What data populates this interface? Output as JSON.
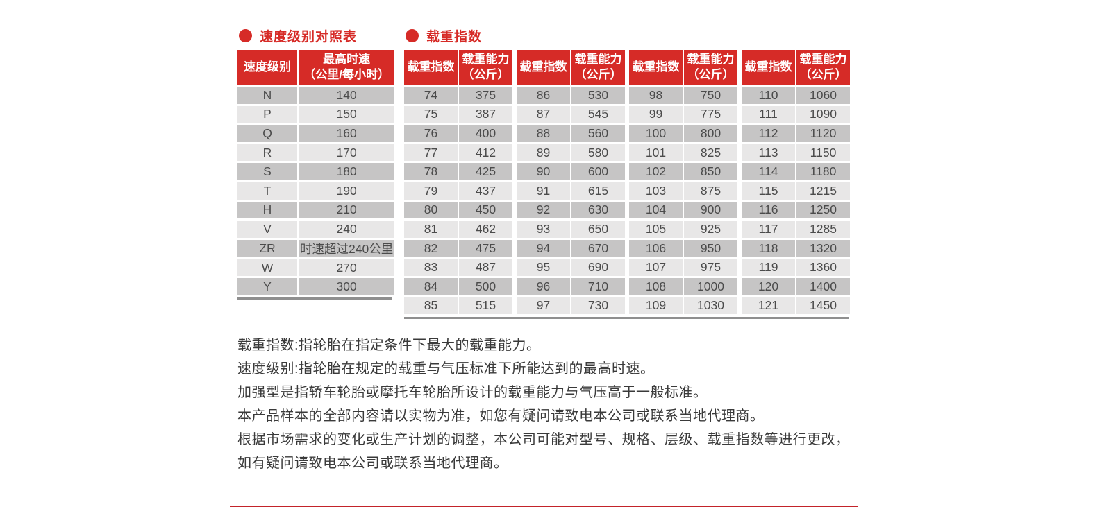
{
  "colors": {
    "accent_red": "#d62b27",
    "row_dark": "#c6c5c5",
    "row_light": "#e8e7e7",
    "cell_text": "#4b4b4b",
    "note_text": "#3a3a3a",
    "underline_gray": "#8f8f8f"
  },
  "speed_table": {
    "title": "速度级别对照表",
    "bullet_icon": "red-circle",
    "col1_header": "速度级别",
    "col2_header_line1": "最高时速",
    "col2_header_line2": "（公里/每小时）",
    "rows": [
      [
        "N",
        "140"
      ],
      [
        "P",
        "150"
      ],
      [
        "Q",
        "160"
      ],
      [
        "R",
        "170"
      ],
      [
        "S",
        "180"
      ],
      [
        "T",
        "190"
      ],
      [
        "H",
        "210"
      ],
      [
        "V",
        "240"
      ],
      [
        "ZR",
        "时速超过240公里"
      ],
      [
        "W",
        "270"
      ],
      [
        "Y",
        "300"
      ]
    ]
  },
  "load_table": {
    "title": "载重指数",
    "bullet_icon": "red-circle",
    "index_header": "载重指数",
    "capacity_header_line1": "载重能力",
    "capacity_header_line2": "（公斤）",
    "groups": [
      {
        "rows": [
          [
            "74",
            "375"
          ],
          [
            "75",
            "387"
          ],
          [
            "76",
            "400"
          ],
          [
            "77",
            "412"
          ],
          [
            "78",
            "425"
          ],
          [
            "79",
            "437"
          ],
          [
            "80",
            "450"
          ],
          [
            "81",
            "462"
          ],
          [
            "82",
            "475"
          ],
          [
            "83",
            "487"
          ],
          [
            "84",
            "500"
          ],
          [
            "85",
            "515"
          ]
        ]
      },
      {
        "rows": [
          [
            "86",
            "530"
          ],
          [
            "87",
            "545"
          ],
          [
            "88",
            "560"
          ],
          [
            "89",
            "580"
          ],
          [
            "90",
            "600"
          ],
          [
            "91",
            "615"
          ],
          [
            "92",
            "630"
          ],
          [
            "93",
            "650"
          ],
          [
            "94",
            "670"
          ],
          [
            "95",
            "690"
          ],
          [
            "96",
            "710"
          ],
          [
            "97",
            "730"
          ]
        ]
      },
      {
        "rows": [
          [
            "98",
            "750"
          ],
          [
            "99",
            "775"
          ],
          [
            "100",
            "800"
          ],
          [
            "101",
            "825"
          ],
          [
            "102",
            "850"
          ],
          [
            "103",
            "875"
          ],
          [
            "104",
            "900"
          ],
          [
            "105",
            "925"
          ],
          [
            "106",
            "950"
          ],
          [
            "107",
            "975"
          ],
          [
            "108",
            "1000"
          ],
          [
            "109",
            "1030"
          ]
        ]
      },
      {
        "rows": [
          [
            "110",
            "1060"
          ],
          [
            "111",
            "1090"
          ],
          [
            "112",
            "1120"
          ],
          [
            "113",
            "1150"
          ],
          [
            "114",
            "1180"
          ],
          [
            "115",
            "1215"
          ],
          [
            "116",
            "1250"
          ],
          [
            "117",
            "1285"
          ],
          [
            "118",
            "1320"
          ],
          [
            "119",
            "1360"
          ],
          [
            "120",
            "1400"
          ],
          [
            "121",
            "1450"
          ]
        ]
      }
    ]
  },
  "notes": [
    "载重指数:指轮胎在指定条件下最大的载重能力。",
    "速度级别:指轮胎在规定的载重与气压标准下所能达到的最高时速。",
    "加强型是指轿车轮胎或摩托车轮胎所设计的载重能力与气压高于一般标准。",
    "本产品样本的全部内容请以实物为准，如您有疑问请致电本公司或联系当地代理商。",
    "根据市场需求的变化或生产计划的调整，本公司可能对型号、规格、层级、载重指数等进行更改，",
    "如有疑问请致电本公司或联系当地代理商。"
  ]
}
